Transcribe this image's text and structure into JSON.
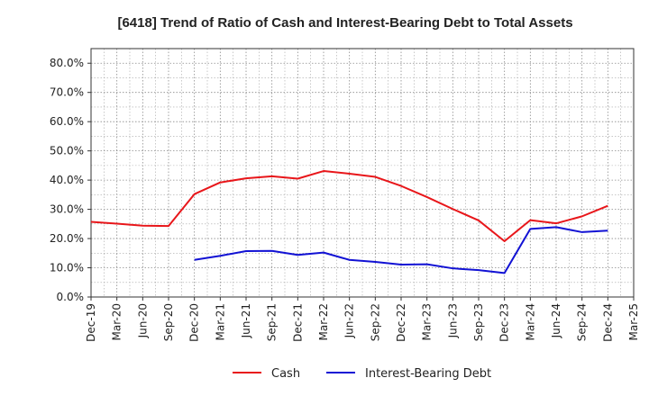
{
  "chart_data": {
    "type": "line",
    "title": "[6418]  Trend of Ratio of Cash and Interest-Bearing Debt to Total Assets",
    "xlabel": "",
    "ylabel": "",
    "x": [
      "Dec-19",
      "Mar-20",
      "Jun-20",
      "Sep-20",
      "Dec-20",
      "Mar-21",
      "Jun-21",
      "Sep-21",
      "Dec-21",
      "Mar-22",
      "Jun-22",
      "Sep-22",
      "Dec-22",
      "Mar-23",
      "Jun-23",
      "Sep-23",
      "Dec-23",
      "Mar-24",
      "Jun-24",
      "Sep-24",
      "Dec-24",
      "Mar-25"
    ],
    "ylim": [
      0,
      85
    ],
    "yticks": [
      0,
      10,
      20,
      30,
      40,
      50,
      60,
      70,
      80
    ],
    "ytick_labels": [
      "0.0%",
      "10.0%",
      "20.0%",
      "30.0%",
      "40.0%",
      "50.0%",
      "60.0%",
      "70.0%",
      "80.0%"
    ],
    "grid": true,
    "legend_position": "bottom",
    "series": [
      {
        "name": "Cash",
        "color": "#e8161a",
        "values": [
          25.7,
          25.1,
          24.4,
          24.3,
          35.2,
          39.2,
          40.6,
          41.3,
          40.5,
          43.1,
          42.2,
          41.1,
          38.0,
          34.2,
          30.1,
          26.2,
          19.1,
          26.3,
          25.2,
          27.6,
          31.2,
          null
        ]
      },
      {
        "name": "Interest-Bearing Debt",
        "color": "#1212d4",
        "values": [
          null,
          null,
          null,
          null,
          12.7,
          14.1,
          15.7,
          15.8,
          14.4,
          15.2,
          12.7,
          12.0,
          11.1,
          11.2,
          9.8,
          9.2,
          8.2,
          23.3,
          23.9,
          22.2,
          22.7,
          null
        ]
      }
    ]
  }
}
